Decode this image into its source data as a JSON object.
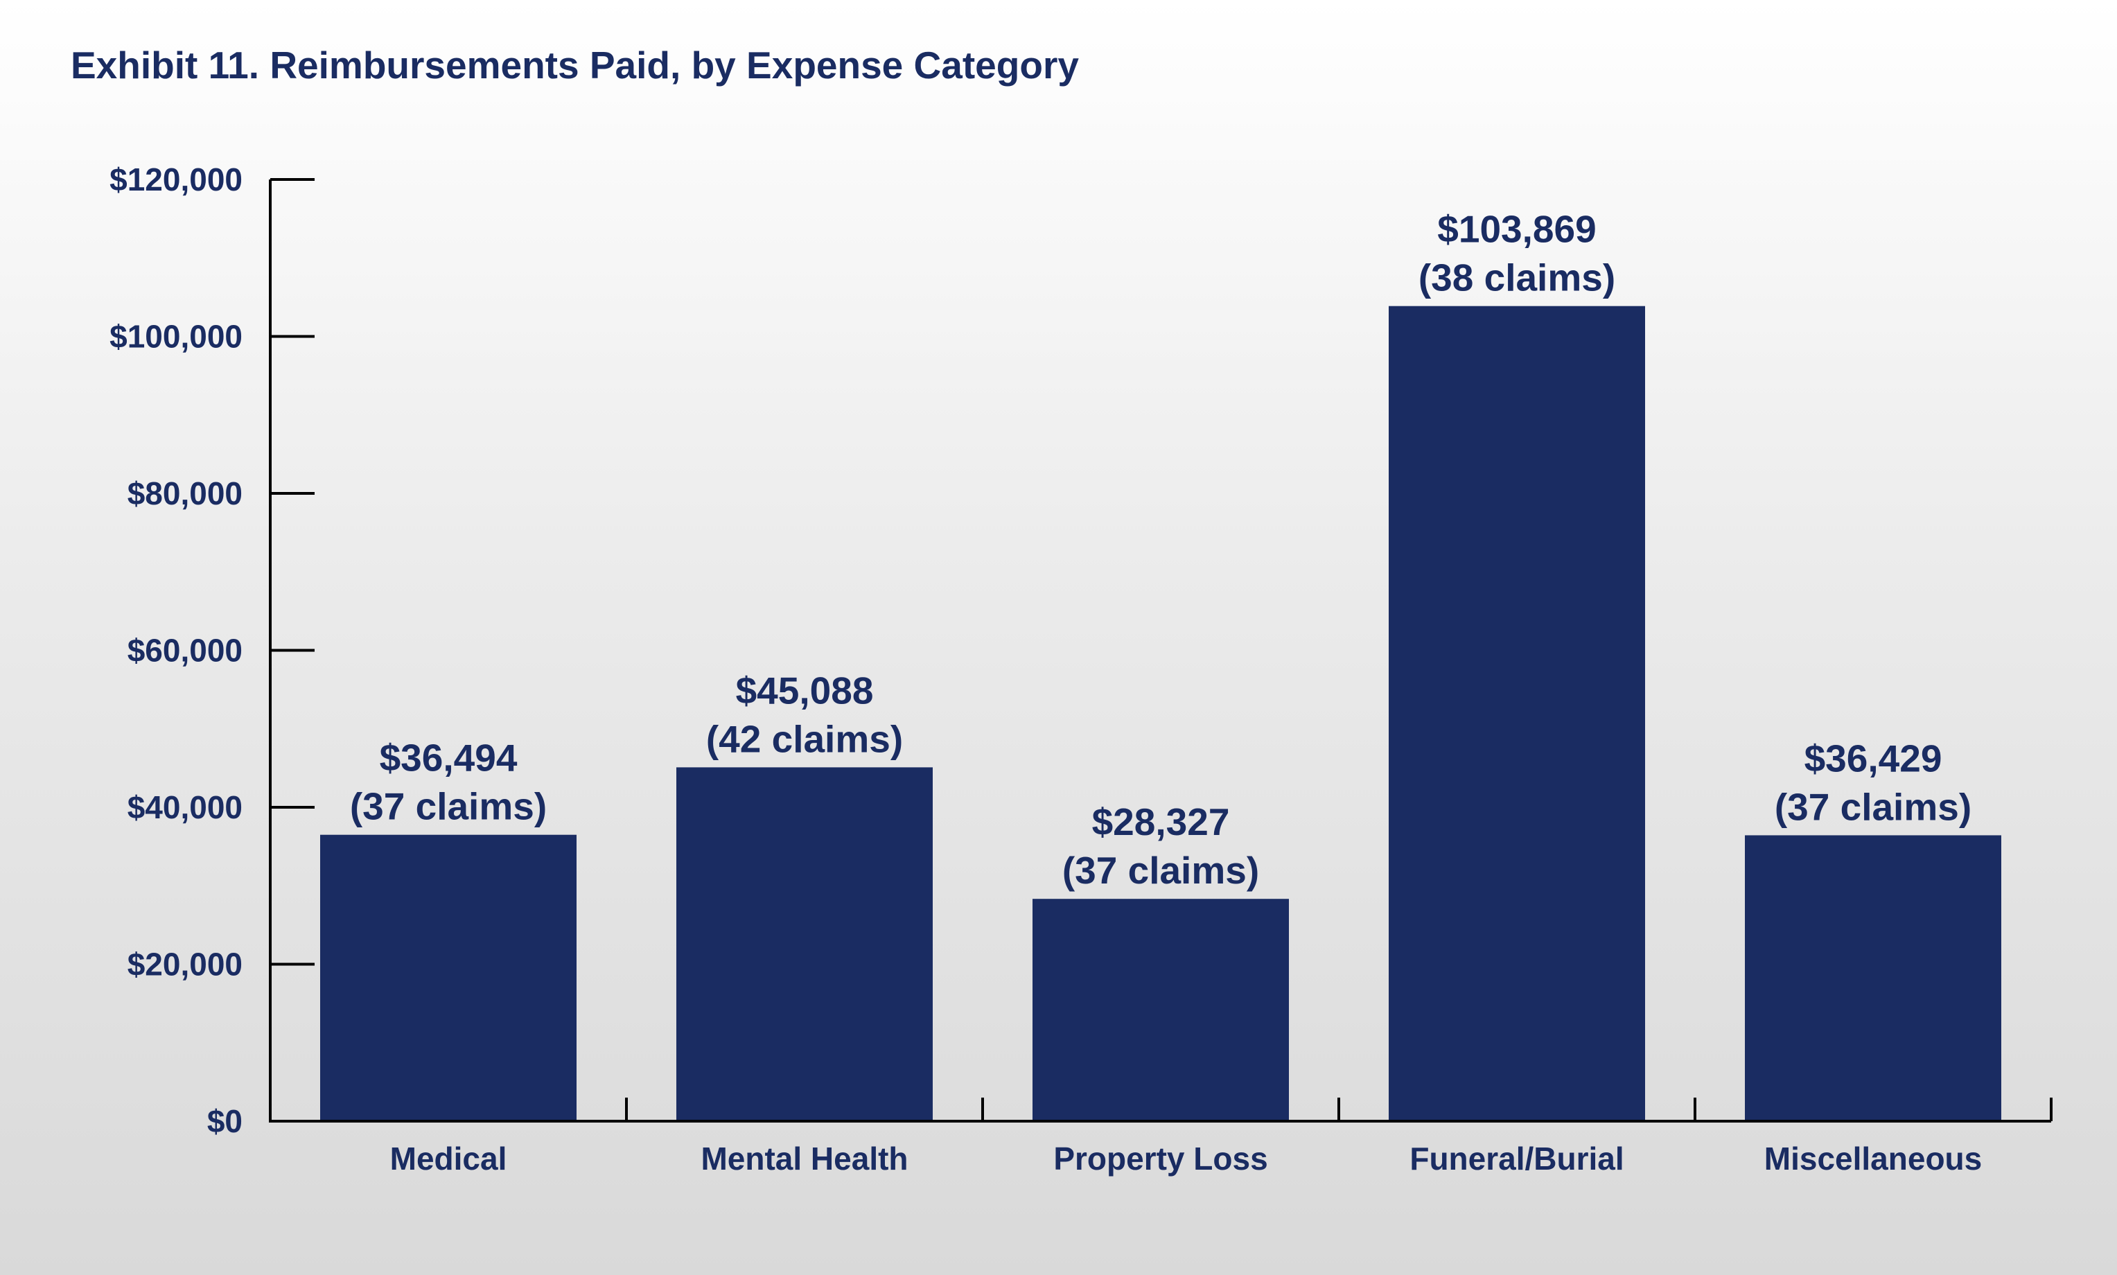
{
  "chart_data": {
    "type": "bar",
    "title": "Exhibit 11. Reimbursements Paid, by Expense Category",
    "xlabel": "",
    "ylabel": "",
    "categories": [
      "Medical",
      "Mental Health",
      "Property Loss",
      "Funeral/Burial",
      "Miscellaneous"
    ],
    "values": [
      36494,
      45088,
      28327,
      103869,
      36429
    ],
    "data_labels": [
      [
        "$36,494",
        "(37 claims)"
      ],
      [
        "$45,088",
        "(42 claims)"
      ],
      [
        "$28,327",
        "(37 claims)"
      ],
      [
        "$103,869",
        "(38 claims)"
      ],
      [
        "$36,429",
        "(37 claims)"
      ]
    ],
    "claims": [
      37,
      42,
      37,
      38,
      37
    ],
    "ylim": [
      0,
      120000
    ],
    "yticks": [
      0,
      20000,
      40000,
      60000,
      80000,
      100000,
      120000
    ],
    "ytick_labels": [
      "$0",
      "$20,000",
      "$40,000",
      "$60,000",
      "$80,000",
      "$100,000",
      "$120,000"
    ],
    "grid": false,
    "legend": "none",
    "colors": {
      "bar": "#1a2c62",
      "text": "#1a2c62",
      "axis": "#000000"
    }
  }
}
